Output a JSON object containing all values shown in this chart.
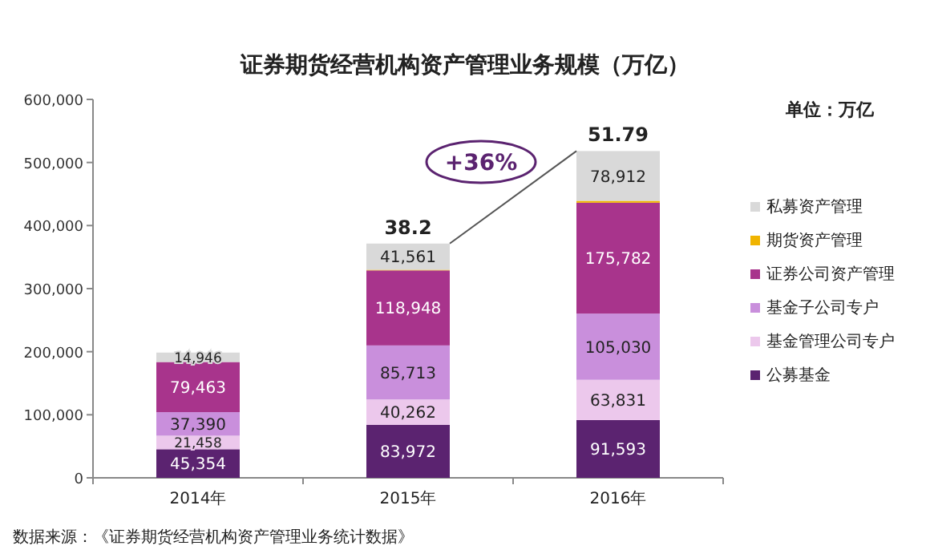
{
  "chart_data": {
    "type": "bar",
    "stacked": true,
    "title": "证券期货经营机构资产管理业务规模（万亿）",
    "categories": [
      "2014年",
      "2015年",
      "2016年"
    ],
    "series": [
      {
        "name": "公募基金",
        "color": "#5b2370",
        "values": [
          45354,
          83972,
          91593
        ],
        "value_labels": [
          "45,354",
          "83,972",
          "91,593"
        ]
      },
      {
        "name": "基金管理公司专户",
        "color": "#ecc8ec",
        "values": [
          21458,
          40262,
          63831
        ],
        "value_labels": [
          "21,458",
          "40,262",
          "63,831"
        ]
      },
      {
        "name": "基金子公司专户",
        "color": "#c98fdc",
        "values": [
          37390,
          85713,
          105030
        ],
        "value_labels": [
          "37,390",
          "85,713",
          "105,030"
        ]
      },
      {
        "name": "证券公司资产管理",
        "color": "#a8348c",
        "values": [
          79463,
          118948,
          175782
        ],
        "value_labels": [
          "79,463",
          "118,948",
          "175,782"
        ]
      },
      {
        "name": "期货资产管理",
        "color": "#f0b400",
        "values": [
          0,
          1000,
          3000
        ],
        "value_labels": [
          null,
          null,
          null
        ]
      },
      {
        "name": "私募资产管理",
        "color": "#d9d9d9",
        "values": [
          14946,
          41561,
          78912
        ],
        "value_labels": [
          "14,946",
          "41,561",
          "78,912"
        ]
      }
    ],
    "ylim": [
      0,
      600000
    ],
    "yticks": [
      {
        "value": 0,
        "label": "0"
      },
      {
        "value": 100000,
        "label": "100,000"
      },
      {
        "value": 200000,
        "label": "200,000"
      },
      {
        "value": 300000,
        "label": "300,000"
      },
      {
        "value": 400000,
        "label": "400,000"
      },
      {
        "value": 500000,
        "label": "500,000"
      },
      {
        "value": 600000,
        "label": "600,000"
      }
    ],
    "legend": "right",
    "annotations": [
      {
        "text": "38.2",
        "x": "2015年",
        "y": 371456
      },
      {
        "text": "51.79",
        "x": "2016年",
        "y": 518148
      },
      "+36%",
      "单位：万亿",
      "数据来源：《证券期货经营机构资产管理业务统计数据》"
    ]
  }
}
